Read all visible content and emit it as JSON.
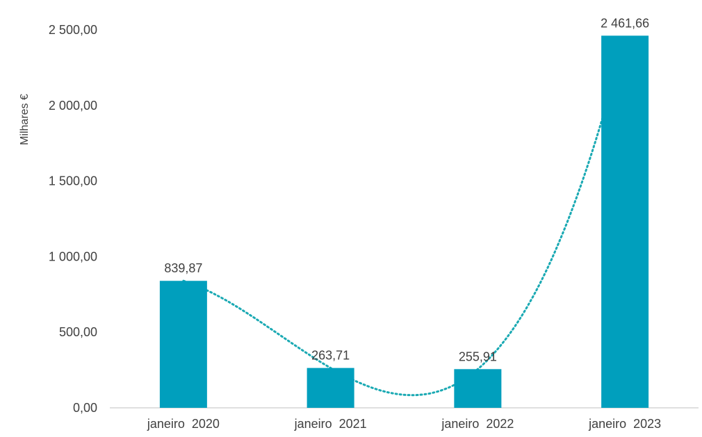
{
  "chart_data": {
    "type": "bar",
    "title": "",
    "xlabel": "",
    "ylabel": "Milhares €",
    "categories": [
      "janeiro  2020",
      "janeiro  2021",
      "janeiro  2022",
      "janeiro  2023"
    ],
    "values": [
      839.87,
      263.71,
      255.91,
      2461.66
    ],
    "value_labels": [
      "839,87",
      "263,71",
      "255,91",
      "2 461,66"
    ],
    "ylim": [
      0,
      2500
    ],
    "y_ticks": [
      0,
      500,
      1000,
      1500,
      2000,
      2500
    ],
    "y_tick_labels": [
      "0,00",
      "500,00",
      "1 000,00",
      "1 500,00",
      "2 000,00",
      "2 500,00"
    ],
    "grid": false,
    "legend": "none",
    "trendline": "polynomial, dotted",
    "colors": {
      "bar": "#009fbd",
      "trendline": "#1aa9b3",
      "axis": "#bfbfbf",
      "text": "#404040"
    }
  }
}
